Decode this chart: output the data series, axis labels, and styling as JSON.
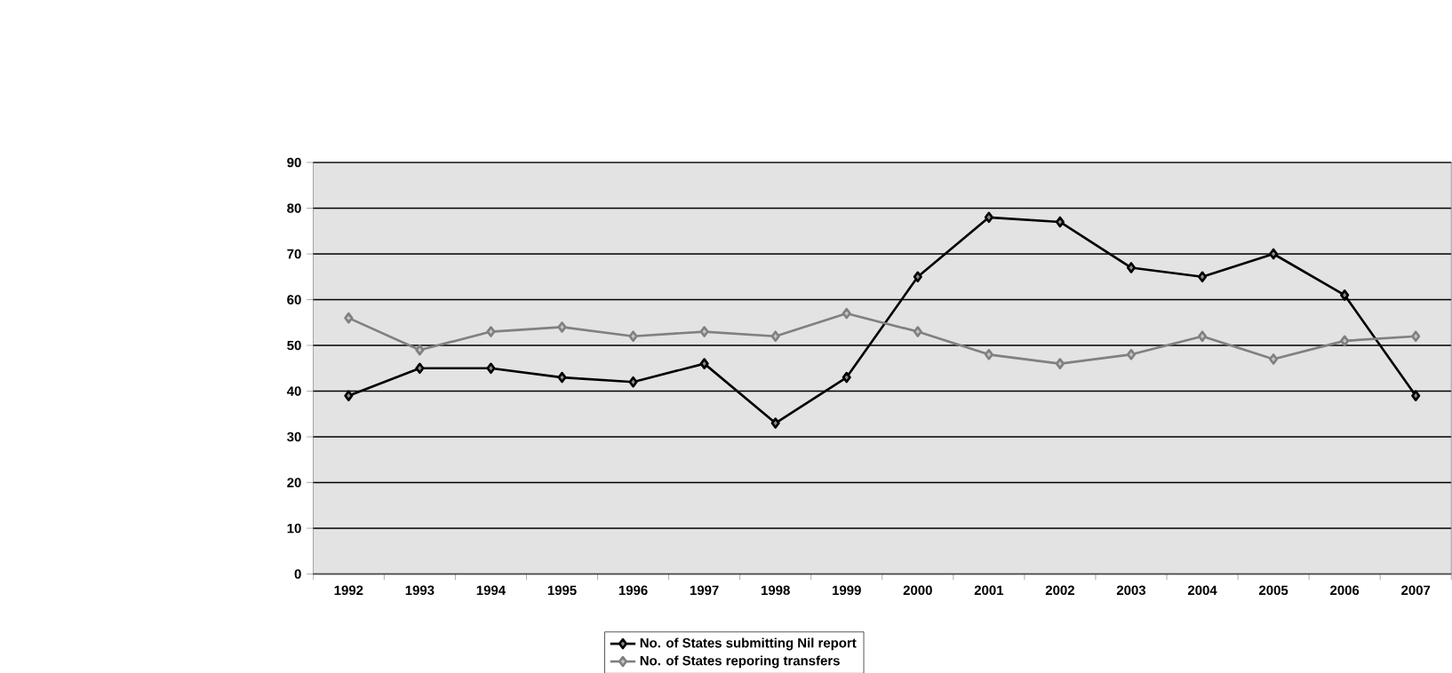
{
  "chart_data": {
    "type": "line",
    "categories": [
      "1992",
      "1993",
      "1994",
      "1995",
      "1996",
      "1997",
      "1998",
      "1999",
      "2000",
      "2001",
      "2002",
      "2003",
      "2004",
      "2005",
      "2006",
      "2007"
    ],
    "series": [
      {
        "name": "No. of States submitting Nil report",
        "color": "#000000",
        "values": [
          39,
          45,
          45,
          43,
          42,
          46,
          33,
          43,
          65,
          78,
          77,
          67,
          65,
          70,
          61,
          39
        ]
      },
      {
        "name": "No. of States reporing transfers",
        "color": "#808080",
        "values": [
          56,
          49,
          53,
          54,
          52,
          53,
          52,
          57,
          53,
          48,
          46,
          48,
          52,
          47,
          51,
          52
        ]
      }
    ],
    "ylim": [
      0,
      90
    ],
    "yticks": [
      0,
      10,
      20,
      30,
      40,
      50,
      60,
      70,
      80,
      90
    ],
    "grid": "y",
    "legend": "bottom",
    "marker": "diamond",
    "line_style": "solid"
  }
}
